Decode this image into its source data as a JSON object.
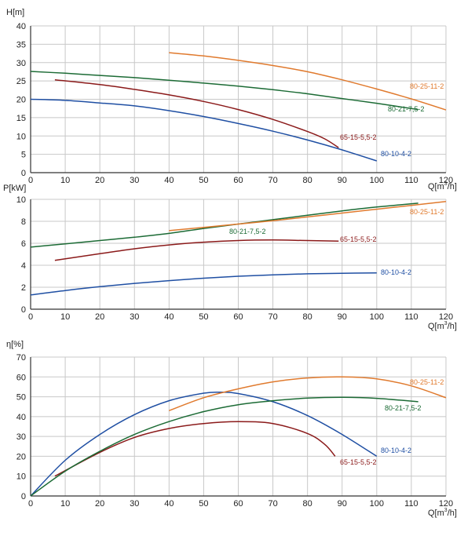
{
  "colors": {
    "80-10-4-2": "#1f4fa3",
    "65-15-5,5-2": "#8b1a1a",
    "80-21-7,5-2": "#1c6b35",
    "80-25-11-2": "#e07a2e",
    "grid": "#c8c8c8",
    "axis": "#333333"
  },
  "chart_data": [
    {
      "type": "line",
      "ylabel": "H[m]",
      "xlabel_main": "Q[m",
      "xlabel_sup": "3",
      "xlabel_end": "/h]",
      "xlim": [
        0,
        120
      ],
      "ylim": [
        0,
        40
      ],
      "xticks": [
        "0",
        "10",
        "20",
        "30",
        "40",
        "50",
        "60",
        "70",
        "80",
        "90",
        "100",
        "110",
        "120"
      ],
      "yticks": [
        "0",
        "5",
        "10",
        "15",
        "20",
        "25",
        "30",
        "35",
        "40"
      ],
      "grid": true,
      "series": [
        {
          "name": "80-10-4-2",
          "x": [
            0,
            10,
            20,
            30,
            40,
            50,
            60,
            70,
            80,
            90,
            100
          ],
          "y": [
            20,
            19.7,
            19,
            18.2,
            16.9,
            15.3,
            13.4,
            11.3,
            8.9,
            6.2,
            3.2
          ]
        },
        {
          "name": "65-15-5,5-2",
          "x": [
            7,
            20,
            30,
            40,
            50,
            60,
            70,
            80,
            85,
            89
          ],
          "y": [
            25.3,
            24,
            22.7,
            21.2,
            19.4,
            17.2,
            14.5,
            11.2,
            9.2,
            6.8
          ]
        },
        {
          "name": "80-21-7,5-2",
          "x": [
            0,
            10,
            20,
            30,
            40,
            50,
            60,
            70,
            80,
            90,
            100,
            112
          ],
          "y": [
            27.6,
            27.1,
            26.5,
            25.9,
            25.2,
            24.4,
            23.6,
            22.6,
            21.5,
            20.2,
            18.9,
            17.2
          ]
        },
        {
          "name": "80-25-11-2",
          "x": [
            40,
            50,
            60,
            70,
            80,
            90,
            100,
            110,
            120
          ],
          "y": [
            32.7,
            31.8,
            30.6,
            29.2,
            27.5,
            25.3,
            22.8,
            20.1,
            17.1
          ]
        }
      ]
    },
    {
      "type": "line",
      "ylabel": "P[kW]",
      "xlabel_main": "Q[m",
      "xlabel_sup": "3",
      "xlabel_end": "/h]",
      "xlim": [
        0,
        120
      ],
      "ylim": [
        0,
        10
      ],
      "xticks": [
        "0",
        "10",
        "20",
        "30",
        "40",
        "50",
        "60",
        "70",
        "80",
        "90",
        "100",
        "110",
        "120"
      ],
      "yticks": [
        "0",
        "2",
        "4",
        "6",
        "8",
        "10"
      ],
      "grid": true,
      "series": [
        {
          "name": "80-10-4-2",
          "x": [
            0,
            10,
            20,
            30,
            40,
            50,
            60,
            70,
            80,
            90,
            100
          ],
          "y": [
            1.3,
            1.7,
            2.05,
            2.35,
            2.6,
            2.82,
            3.0,
            3.13,
            3.22,
            3.27,
            3.3
          ]
        },
        {
          "name": "65-15-5,5-2",
          "x": [
            7,
            20,
            30,
            40,
            50,
            60,
            70,
            80,
            89
          ],
          "y": [
            4.45,
            5.05,
            5.5,
            5.85,
            6.1,
            6.25,
            6.3,
            6.25,
            6.2
          ]
        },
        {
          "name": "80-21-7,5-2",
          "x": [
            0,
            10,
            20,
            30,
            40,
            50,
            60,
            70,
            80,
            90,
            100,
            112
          ],
          "y": [
            5.65,
            5.95,
            6.25,
            6.55,
            6.9,
            7.35,
            7.75,
            8.15,
            8.55,
            8.95,
            9.3,
            9.65
          ]
        },
        {
          "name": "80-25-11-2",
          "x": [
            40,
            50,
            60,
            70,
            80,
            90,
            100,
            110,
            120
          ],
          "y": [
            7.15,
            7.45,
            7.75,
            8.05,
            8.4,
            8.75,
            9.1,
            9.45,
            9.8
          ]
        }
      ]
    },
    {
      "type": "line",
      "ylabel": "η[%]",
      "xlabel_main": "Q[m",
      "xlabel_sup": "3",
      "xlabel_end": "/h]",
      "xlim": [
        0,
        120
      ],
      "ylim": [
        0,
        70
      ],
      "xticks": [
        "0",
        "10",
        "20",
        "30",
        "40",
        "50",
        "60",
        "70",
        "80",
        "90",
        "100",
        "110",
        "120"
      ],
      "yticks": [
        "0",
        "10",
        "20",
        "30",
        "40",
        "50",
        "60",
        "70"
      ],
      "grid": true,
      "series": [
        {
          "name": "80-10-4-2",
          "x": [
            0,
            10,
            20,
            30,
            40,
            50,
            55,
            60,
            70,
            80,
            90,
            100
          ],
          "y": [
            0,
            18,
            31,
            41,
            48,
            51.8,
            52.3,
            51.6,
            47.5,
            40.5,
            31,
            20
          ]
        },
        {
          "name": "65-15-5,5-2",
          "x": [
            7,
            20,
            30,
            40,
            50,
            60,
            70,
            80,
            85,
            88
          ],
          "y": [
            10,
            22,
            29.5,
            34,
            36.5,
            37.5,
            36.5,
            31.5,
            26,
            20
          ]
        },
        {
          "name": "80-21-7,5-2",
          "x": [
            0,
            10,
            20,
            30,
            40,
            50,
            60,
            70,
            80,
            90,
            100,
            112
          ],
          "y": [
            0,
            12.5,
            22.5,
            31,
            37.5,
            42.5,
            46,
            48,
            49.3,
            49.7,
            49.2,
            47.5
          ]
        },
        {
          "name": "80-25-11-2",
          "x": [
            40,
            50,
            60,
            70,
            80,
            90,
            100,
            110,
            120
          ],
          "y": [
            43,
            49.5,
            54,
            57.5,
            59.5,
            60,
            59,
            55.5,
            49.5
          ]
        }
      ]
    }
  ]
}
